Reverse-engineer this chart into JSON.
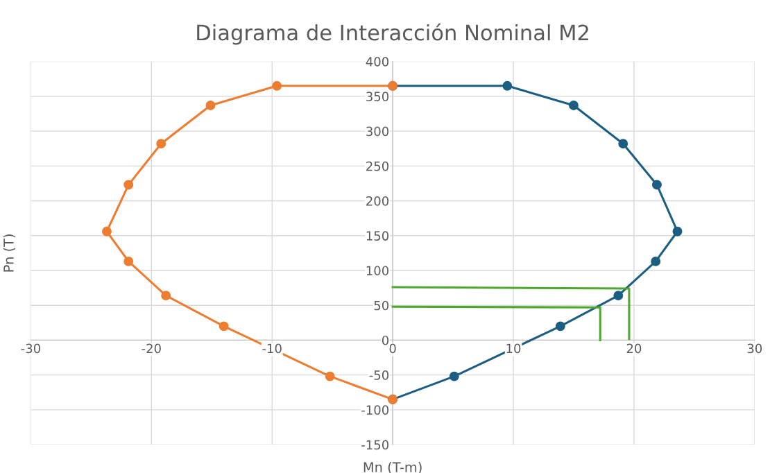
{
  "chart_data": {
    "type": "line",
    "title": "Diagrama de Interacción Nominal M2",
    "xlabel": "Mn (T-m)",
    "ylabel": "Pn (T)",
    "xlim": [
      -30,
      30
    ],
    "xticks": [
      -30,
      -20,
      -10,
      0,
      10,
      20,
      30
    ],
    "ylim": [
      -150,
      400
    ],
    "yticks": [
      -150,
      -100,
      -50,
      0,
      50,
      100,
      150,
      200,
      250,
      300,
      350,
      400
    ],
    "grid": true,
    "legend": false,
    "line_style": "solid",
    "series": [
      {
        "color": "#1b5e82",
        "marker": "circle",
        "x": [
          0,
          9.5,
          15,
          19.1,
          21.9,
          23.6,
          21.8,
          18.7,
          13.9,
          5.1,
          0
        ],
        "values": [
          365,
          365,
          337,
          282,
          223,
          156,
          113,
          64,
          20,
          -52,
          -85
        ]
      },
      {
        "color": "#ed7d31",
        "marker": "circle",
        "x": [
          0,
          -9.6,
          -15.1,
          -19.2,
          -21.9,
          -23.7,
          -21.9,
          -18.8,
          -14,
          -5.2,
          0
        ],
        "values": [
          365,
          365,
          337,
          282,
          223,
          156,
          113,
          64,
          20,
          -52,
          -85
        ]
      },
      {
        "color": "#4ea72e",
        "marker": "none",
        "x": [
          0,
          19.6,
          19.6
        ],
        "values": [
          76,
          74,
          2
        ]
      },
      {
        "color": "#4ea72e",
        "marker": "none",
        "x": [
          0,
          17.2,
          17.2
        ],
        "values": [
          48,
          47,
          0
        ]
      }
    ]
  }
}
